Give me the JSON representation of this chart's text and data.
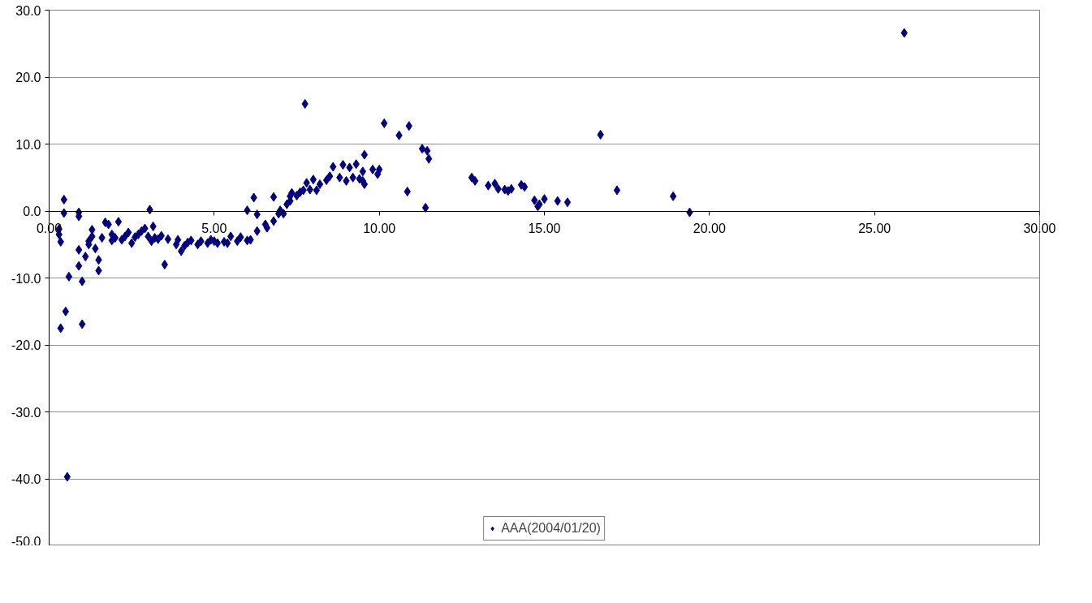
{
  "chart_data": {
    "type": "scatter",
    "xlim": [
      0,
      30
    ],
    "ylim": [
      -50,
      30
    ],
    "xticks": [
      {
        "value": 0,
        "label": "0.00"
      },
      {
        "value": 5,
        "label": "5.00"
      },
      {
        "value": 10,
        "label": "10.00"
      },
      {
        "value": 15,
        "label": "15.00"
      },
      {
        "value": 20,
        "label": "20.00"
      },
      {
        "value": 25,
        "label": "25.00"
      },
      {
        "value": 30,
        "label": "30.00"
      }
    ],
    "yticks": [
      {
        "value": -50,
        "label": "-50.0"
      },
      {
        "value": -40,
        "label": "-40.0"
      },
      {
        "value": -30,
        "label": "-30.0"
      },
      {
        "value": -20,
        "label": "-20.0"
      },
      {
        "value": -10,
        "label": "-10.0"
      },
      {
        "value": 0,
        "label": "0.0"
      },
      {
        "value": 10,
        "label": "10.0"
      },
      {
        "value": 20,
        "label": "20.0"
      },
      {
        "value": 30,
        "label": "30.0"
      }
    ],
    "grid": "y",
    "legend": "bottom",
    "marker": "diamond",
    "series": [
      {
        "name": "AAA(2004/01/20)",
        "color": "#000080",
        "x": [
          0.3,
          0.3,
          0.35,
          0.45,
          0.45,
          0.5,
          0.35,
          0.55,
          0.6,
          0.9,
          0.9,
          0.9,
          0.9,
          1.0,
          1.0,
          1.1,
          1.2,
          1.2,
          1.3,
          1.3,
          1.4,
          1.5,
          1.5,
          1.6,
          1.7,
          1.8,
          1.9,
          1.9,
          2.0,
          2.1,
          2.2,
          2.3,
          2.4,
          2.5,
          2.6,
          2.7,
          2.8,
          2.9,
          3.0,
          3.05,
          3.1,
          3.15,
          3.2,
          3.3,
          3.4,
          3.5,
          3.6,
          3.85,
          3.9,
          4.0,
          4.1,
          4.2,
          4.3,
          4.5,
          4.6,
          4.8,
          4.9,
          5.0,
          5.1,
          5.3,
          5.4,
          5.5,
          5.7,
          5.8,
          6.0,
          6.0,
          6.1,
          6.2,
          6.3,
          6.3,
          6.55,
          6.6,
          6.8,
          6.8,
          6.95,
          7.0,
          7.1,
          7.2,
          7.3,
          7.3,
          7.35,
          7.5,
          7.6,
          7.7,
          7.75,
          7.8,
          7.9,
          8.0,
          8.1,
          8.2,
          8.4,
          8.5,
          8.6,
          8.8,
          8.9,
          9.0,
          9.1,
          9.2,
          9.3,
          9.4,
          9.5,
          9.55,
          9.5,
          9.55,
          9.8,
          9.95,
          10.0,
          10.15,
          10.6,
          10.85,
          10.9,
          11.3,
          11.4,
          11.45,
          11.5,
          12.8,
          12.9,
          13.3,
          13.5,
          13.6,
          13.8,
          13.9,
          14.0,
          14.3,
          14.4,
          14.7,
          14.8,
          14.85,
          15.0,
          15.4,
          15.7,
          16.7,
          17.2,
          18.9,
          19.4,
          25.9
        ],
        "values": [
          -2.7,
          -3.5,
          -4.6,
          1.7,
          -0.3,
          -15.0,
          -17.5,
          -39.7,
          -9.8,
          -0.2,
          -0.8,
          -5.8,
          -8.2,
          -10.5,
          -16.9,
          -6.8,
          -4.5,
          -5.0,
          -2.8,
          -3.8,
          -5.6,
          -7.3,
          -8.9,
          -4.0,
          -1.7,
          -2.0,
          -3.5,
          -4.4,
          -4.0,
          -1.6,
          -4.3,
          -3.8,
          -3.2,
          -4.8,
          -3.9,
          -3.5,
          -3.0,
          -2.6,
          -3.8,
          0.2,
          -4.5,
          -2.3,
          -4.0,
          -4.2,
          -3.7,
          -8.0,
          -4.2,
          -5.0,
          -4.3,
          -6.0,
          -5.2,
          -4.7,
          -4.4,
          -5.0,
          -4.5,
          -4.8,
          -4.3,
          -4.5,
          -4.8,
          -4.6,
          -4.8,
          -3.8,
          -4.5,
          -3.9,
          -4.4,
          0.1,
          -4.3,
          2.0,
          -0.5,
          -3.0,
          -2.0,
          -2.5,
          -1.5,
          2.1,
          -0.4,
          0.1,
          -0.4,
          1.0,
          1.5,
          2.2,
          2.7,
          2.3,
          2.8,
          3.1,
          16.0,
          4.2,
          3.2,
          4.7,
          3.1,
          4.0,
          4.6,
          5.2,
          6.6,
          5.0,
          6.9,
          4.5,
          6.5,
          5.0,
          7.0,
          4.8,
          4.5,
          4.0,
          5.9,
          8.4,
          6.2,
          5.5,
          6.2,
          13.1,
          11.3,
          2.9,
          12.7,
          9.3,
          0.5,
          9.0,
          7.8,
          5.0,
          4.5,
          3.8,
          4.1,
          3.3,
          3.2,
          3.0,
          3.3,
          3.9,
          3.6,
          1.6,
          0.7,
          1.0,
          1.8,
          1.5,
          1.3,
          11.4,
          3.1,
          2.2,
          -0.2,
          26.6
        ]
      }
    ]
  }
}
